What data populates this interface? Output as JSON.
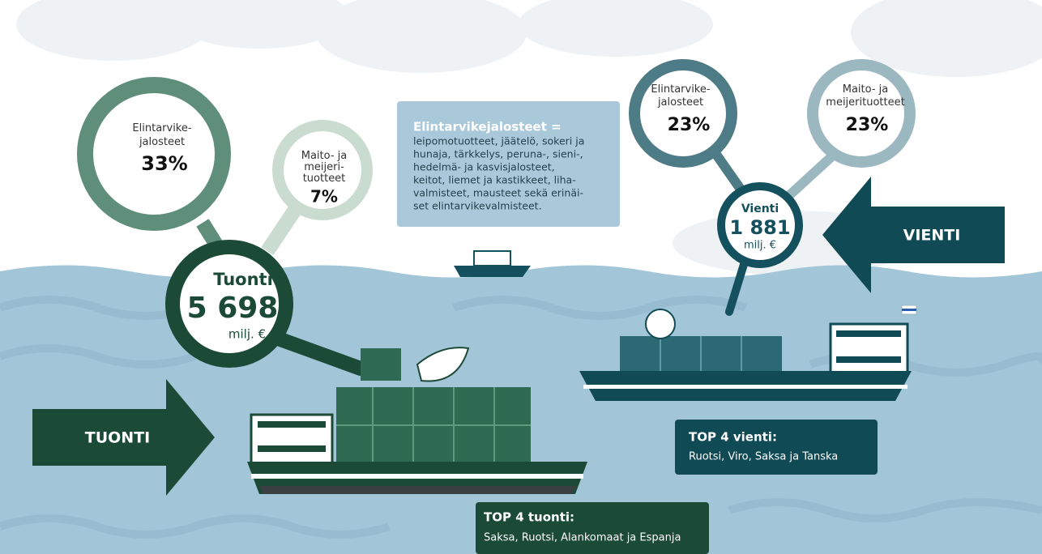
{
  "import": {
    "processed": {
      "label": [
        "Elintarvike-",
        "jalosteet"
      ],
      "share": "33%"
    },
    "dairy": {
      "label": [
        "Maito- ja",
        "meijeri-",
        "tuotteet"
      ],
      "share": "7%"
    },
    "total": {
      "title": "Tuonti",
      "amount": "5 698",
      "unit": "milj. €"
    },
    "arrow": "TUONTI",
    "top4": {
      "title": "TOP 4 tuonti:",
      "countries": "Saksa, Ruotsi, Alankomaat  ja Espanja"
    }
  },
  "export": {
    "processed": {
      "label": [
        "Elintarvike-",
        "jalosteet"
      ],
      "share": "23%"
    },
    "dairy": {
      "label": [
        "Maito- ja",
        "meijerituotteet"
      ],
      "share": "23%"
    },
    "total": {
      "title": "Vienti",
      "amount": "1 881",
      "unit": "milj. €"
    },
    "arrow": "VIENTI",
    "top4": {
      "title": "TOP 4 vienti:",
      "countries": "Ruotsi, Viro, Saksa ja Tanska"
    }
  },
  "definition": {
    "term": "Elintarvikejalosteet =",
    "lines": [
      "leipomotuotteet, jäätelö, sokeri ja",
      "hunaja, tärkkelys, peruna-, sieni-,",
      "hedelmä- ja kasvisjalosteet,",
      "keitot, liemet ja kastikkeet, liha-",
      "valmisteet, mausteet sekä erinäi-",
      "set elintarvikevalmisteet."
    ]
  }
}
